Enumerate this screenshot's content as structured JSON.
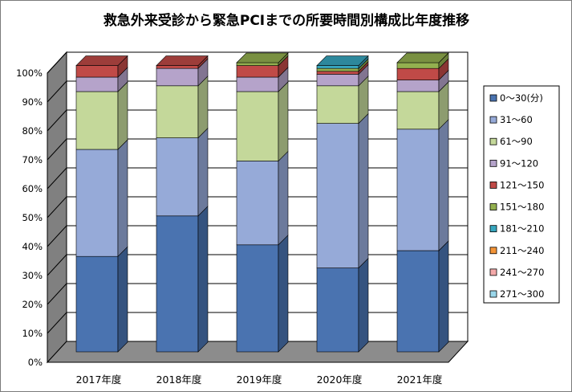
{
  "chart_data": {
    "type": "bar",
    "stacked": true,
    "three_d": true,
    "title": "救急外来受診から緊急PCIまでの所要時間別構成比年度推移",
    "xlabel": "",
    "ylabel": "",
    "ylim": [
      0,
      100
    ],
    "y_ticks": [
      "0%",
      "10%",
      "20%",
      "30%",
      "40%",
      "50%",
      "60%",
      "70%",
      "80%",
      "90%",
      "100%"
    ],
    "grid": true,
    "legend_position": "right",
    "categories": [
      "2017年度",
      "2018年度",
      "2019年度",
      "2020年度",
      "2021年度"
    ],
    "series": [
      {
        "name": "0～30(分)",
        "color": "#4a73b0",
        "values": [
          33,
          47,
          37,
          29,
          35
        ]
      },
      {
        "name": "31～60",
        "color": "#96aad8",
        "values": [
          37,
          27,
          29,
          50,
          42
        ]
      },
      {
        "name": "61～90",
        "color": "#c4d89a",
        "values": [
          20,
          18,
          24,
          13,
          13
        ]
      },
      {
        "name": "91～120",
        "color": "#b5a3ca",
        "values": [
          5,
          6,
          5,
          4,
          4
        ]
      },
      {
        "name": "121～150",
        "color": "#c04a47",
        "values": [
          4,
          1,
          4,
          1,
          4
        ]
      },
      {
        "name": "151～180",
        "color": "#93b04f",
        "values": [
          0,
          0,
          1,
          1,
          2
        ]
      },
      {
        "name": "181～210",
        "color": "#37a6be",
        "values": [
          0,
          0,
          0,
          1,
          0
        ]
      },
      {
        "name": "211～240",
        "color": "#f39438",
        "values": [
          0,
          0,
          0,
          0,
          0
        ]
      },
      {
        "name": "241～270",
        "color": "#f4a9a9",
        "values": [
          0,
          0,
          0,
          0,
          0
        ]
      },
      {
        "name": "271～300",
        "color": "#9ad7ea",
        "values": [
          0,
          0,
          0,
          0,
          0
        ]
      }
    ]
  }
}
